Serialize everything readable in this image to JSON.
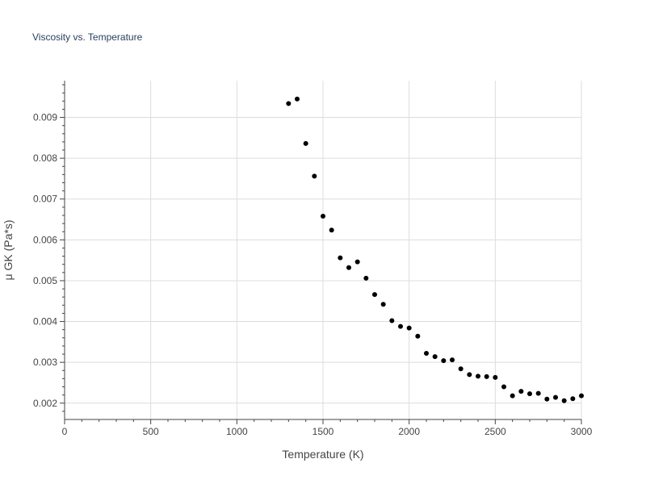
{
  "chart_data": {
    "type": "scatter",
    "title": "Viscosity vs. Temperature",
    "xlabel": "Temperature (K)",
    "ylabel": "μ GK (Pa*s)",
    "xlim": [
      0,
      3000
    ],
    "ylim": [
      0.0016,
      0.0099
    ],
    "xticks": [
      0,
      500,
      1000,
      1500,
      2000,
      2500,
      3000
    ],
    "xtick_labels": [
      "0",
      "500",
      "1000",
      "1500",
      "2000",
      "2500",
      "3000"
    ],
    "yticks": [
      0.002,
      0.003,
      0.004,
      0.005,
      0.006,
      0.007,
      0.008,
      0.009
    ],
    "ytick_labels": [
      "0.002",
      "0.003",
      "0.004",
      "0.005",
      "0.006",
      "0.007",
      "0.008",
      "0.009"
    ],
    "grid": true,
    "marker_color": "#000000",
    "points": [
      {
        "x": 1300,
        "y": 0.00934
      },
      {
        "x": 1350,
        "y": 0.00945
      },
      {
        "x": 1400,
        "y": 0.00836
      },
      {
        "x": 1450,
        "y": 0.00756
      },
      {
        "x": 1500,
        "y": 0.00658
      },
      {
        "x": 1550,
        "y": 0.00624
      },
      {
        "x": 1600,
        "y": 0.00556
      },
      {
        "x": 1650,
        "y": 0.00532
      },
      {
        "x": 1700,
        "y": 0.00546
      },
      {
        "x": 1750,
        "y": 0.00506
      },
      {
        "x": 1800,
        "y": 0.00466
      },
      {
        "x": 1850,
        "y": 0.00442
      },
      {
        "x": 1900,
        "y": 0.00402
      },
      {
        "x": 1950,
        "y": 0.00388
      },
      {
        "x": 2000,
        "y": 0.00384
      },
      {
        "x": 2050,
        "y": 0.00364
      },
      {
        "x": 2100,
        "y": 0.00322
      },
      {
        "x": 2150,
        "y": 0.00314
      },
      {
        "x": 2200,
        "y": 0.00304
      },
      {
        "x": 2250,
        "y": 0.00306
      },
      {
        "x": 2300,
        "y": 0.00284
      },
      {
        "x": 2350,
        "y": 0.0027
      },
      {
        "x": 2400,
        "y": 0.00266
      },
      {
        "x": 2450,
        "y": 0.00265
      },
      {
        "x": 2500,
        "y": 0.00263
      },
      {
        "x": 2550,
        "y": 0.0024
      },
      {
        "x": 2600,
        "y": 0.00218
      },
      {
        "x": 2650,
        "y": 0.00229
      },
      {
        "x": 2700,
        "y": 0.00223
      },
      {
        "x": 2750,
        "y": 0.00224
      },
      {
        "x": 2800,
        "y": 0.0021
      },
      {
        "x": 2850,
        "y": 0.00214
      },
      {
        "x": 2900,
        "y": 0.00206
      },
      {
        "x": 2950,
        "y": 0.00211
      },
      {
        "x": 3000,
        "y": 0.00218
      }
    ]
  }
}
